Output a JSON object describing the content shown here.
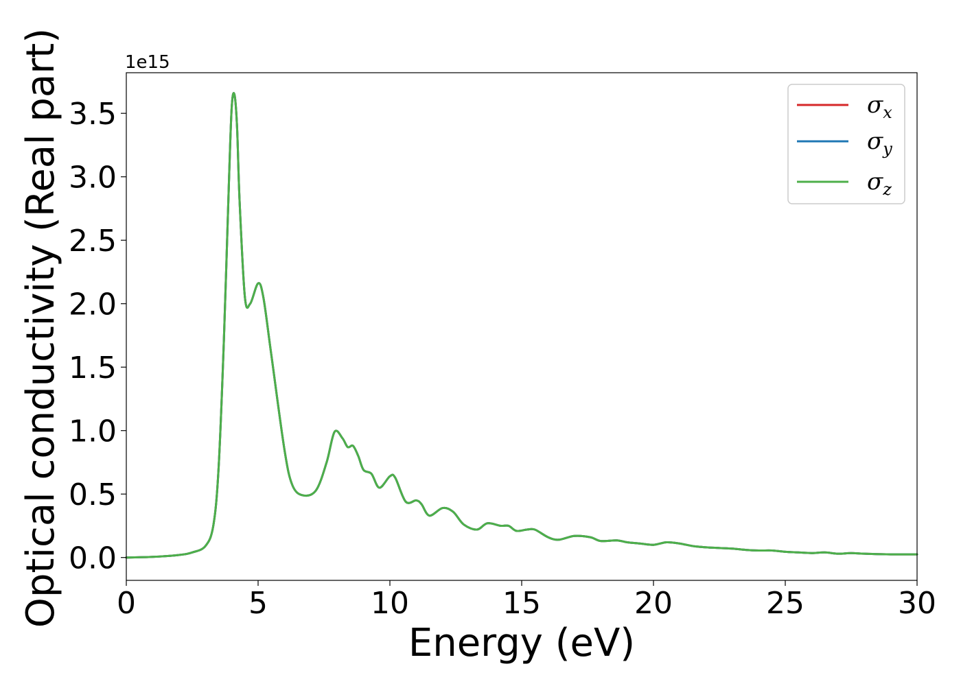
{
  "chart_data": {
    "type": "line",
    "xlabel": "Energy (eV)",
    "ylabel": "Optical conductivity (Real part)",
    "y_offset_label": "1e15",
    "xlim": [
      0,
      30
    ],
    "ylim": [
      -0.18,
      3.82
    ],
    "x_ticks": [
      0,
      5,
      10,
      15,
      20,
      25,
      30
    ],
    "x_tick_labels": [
      "0",
      "5",
      "10",
      "15",
      "20",
      "25",
      "30"
    ],
    "y_ticks": [
      0.0,
      0.5,
      1.0,
      1.5,
      2.0,
      2.5,
      3.0,
      3.5
    ],
    "y_tick_labels": [
      "0.0",
      "0.5",
      "1.0",
      "1.5",
      "2.0",
      "2.5",
      "3.0",
      "3.5"
    ],
    "grid": false,
    "legend_position": "top-right",
    "series_colors": [
      "#d62728",
      "#1f77b4",
      "#4daf4a"
    ],
    "series": [
      {
        "name": "σx",
        "symbol": "σ",
        "subscript": "x",
        "color": "#d62728",
        "x": [
          0,
          1,
          2,
          2.5,
          3,
          3.3,
          3.5,
          3.7,
          3.9,
          4.0,
          4.1,
          4.2,
          4.3,
          4.5,
          4.7,
          5.0,
          5.2,
          5.5,
          6.0,
          6.3,
          6.7,
          7.2,
          7.6,
          7.9,
          8.2,
          8.4,
          8.6,
          8.8,
          9.0,
          9.3,
          9.6,
          10.0,
          10.2,
          10.6,
          11.0,
          11.2,
          11.5,
          12.0,
          12.4,
          12.8,
          13.3,
          13.7,
          14.2,
          14.5,
          14.8,
          15.2,
          15.5,
          16.0,
          16.4,
          17.0,
          17.6,
          18.0,
          18.6,
          19.0,
          19.5,
          20.0,
          20.5,
          21.0,
          21.5,
          22.0,
          22.5,
          23.0,
          23.5,
          24.0,
          24.5,
          25.0,
          25.5,
          26.0,
          26.5,
          27.0,
          27.5,
          28.0,
          29.0,
          30.0
        ],
        "y": [
          0.0,
          0.005,
          0.02,
          0.04,
          0.09,
          0.25,
          0.7,
          1.7,
          3.0,
          3.55,
          3.65,
          3.4,
          2.8,
          2.05,
          2.0,
          2.16,
          2.05,
          1.6,
          0.85,
          0.57,
          0.49,
          0.53,
          0.75,
          0.99,
          0.94,
          0.87,
          0.88,
          0.8,
          0.69,
          0.66,
          0.55,
          0.64,
          0.63,
          0.44,
          0.45,
          0.42,
          0.33,
          0.39,
          0.36,
          0.26,
          0.22,
          0.27,
          0.25,
          0.25,
          0.21,
          0.22,
          0.22,
          0.16,
          0.14,
          0.17,
          0.16,
          0.13,
          0.135,
          0.12,
          0.11,
          0.1,
          0.12,
          0.11,
          0.09,
          0.08,
          0.075,
          0.07,
          0.06,
          0.055,
          0.055,
          0.045,
          0.04,
          0.035,
          0.04,
          0.03,
          0.035,
          0.03,
          0.025,
          0.025
        ]
      },
      {
        "name": "σy",
        "symbol": "σ",
        "subscript": "y",
        "color": "#1f77b4",
        "x": [
          0,
          1,
          2,
          2.5,
          3,
          3.3,
          3.5,
          3.7,
          3.9,
          4.0,
          4.1,
          4.2,
          4.3,
          4.5,
          4.7,
          5.0,
          5.2,
          5.5,
          6.0,
          6.3,
          6.7,
          7.2,
          7.6,
          7.9,
          8.2,
          8.4,
          8.6,
          8.8,
          9.0,
          9.3,
          9.6,
          10.0,
          10.2,
          10.6,
          11.0,
          11.2,
          11.5,
          12.0,
          12.4,
          12.8,
          13.3,
          13.7,
          14.2,
          14.5,
          14.8,
          15.2,
          15.5,
          16.0,
          16.4,
          17.0,
          17.6,
          18.0,
          18.6,
          19.0,
          19.5,
          20.0,
          20.5,
          21.0,
          21.5,
          22.0,
          22.5,
          23.0,
          23.5,
          24.0,
          24.5,
          25.0,
          25.5,
          26.0,
          26.5,
          27.0,
          27.5,
          28.0,
          29.0,
          30.0
        ],
        "y": [
          0.0,
          0.005,
          0.02,
          0.04,
          0.09,
          0.25,
          0.7,
          1.7,
          3.0,
          3.55,
          3.65,
          3.4,
          2.8,
          2.05,
          2.0,
          2.16,
          2.05,
          1.6,
          0.85,
          0.57,
          0.49,
          0.53,
          0.75,
          0.99,
          0.94,
          0.87,
          0.88,
          0.8,
          0.69,
          0.66,
          0.55,
          0.64,
          0.63,
          0.44,
          0.45,
          0.42,
          0.33,
          0.39,
          0.36,
          0.26,
          0.22,
          0.27,
          0.25,
          0.25,
          0.21,
          0.22,
          0.22,
          0.16,
          0.14,
          0.17,
          0.16,
          0.13,
          0.135,
          0.12,
          0.11,
          0.1,
          0.12,
          0.11,
          0.09,
          0.08,
          0.075,
          0.07,
          0.06,
          0.055,
          0.055,
          0.045,
          0.04,
          0.035,
          0.04,
          0.03,
          0.035,
          0.03,
          0.025,
          0.025
        ]
      },
      {
        "name": "σz",
        "symbol": "σ",
        "subscript": "z",
        "color": "#4daf4a",
        "x": [
          0,
          1,
          2,
          2.5,
          3,
          3.3,
          3.5,
          3.7,
          3.9,
          4.0,
          4.1,
          4.2,
          4.3,
          4.5,
          4.7,
          5.0,
          5.2,
          5.5,
          6.0,
          6.3,
          6.7,
          7.2,
          7.6,
          7.9,
          8.2,
          8.4,
          8.6,
          8.8,
          9.0,
          9.3,
          9.6,
          10.0,
          10.2,
          10.6,
          11.0,
          11.2,
          11.5,
          12.0,
          12.4,
          12.8,
          13.3,
          13.7,
          14.2,
          14.5,
          14.8,
          15.2,
          15.5,
          16.0,
          16.4,
          17.0,
          17.6,
          18.0,
          18.6,
          19.0,
          19.5,
          20.0,
          20.5,
          21.0,
          21.5,
          22.0,
          22.5,
          23.0,
          23.5,
          24.0,
          24.5,
          25.0,
          25.5,
          26.0,
          26.5,
          27.0,
          27.5,
          28.0,
          29.0,
          30.0
        ],
        "y": [
          0.0,
          0.005,
          0.02,
          0.04,
          0.09,
          0.25,
          0.7,
          1.7,
          3.0,
          3.55,
          3.65,
          3.4,
          2.8,
          2.05,
          2.0,
          2.16,
          2.05,
          1.6,
          0.85,
          0.57,
          0.49,
          0.53,
          0.75,
          0.99,
          0.94,
          0.87,
          0.88,
          0.8,
          0.69,
          0.66,
          0.55,
          0.64,
          0.63,
          0.44,
          0.45,
          0.42,
          0.33,
          0.39,
          0.36,
          0.26,
          0.22,
          0.27,
          0.25,
          0.25,
          0.21,
          0.22,
          0.22,
          0.16,
          0.14,
          0.17,
          0.16,
          0.13,
          0.135,
          0.12,
          0.11,
          0.1,
          0.12,
          0.11,
          0.09,
          0.08,
          0.075,
          0.07,
          0.06,
          0.055,
          0.055,
          0.045,
          0.04,
          0.035,
          0.04,
          0.03,
          0.035,
          0.03,
          0.025,
          0.025
        ]
      }
    ]
  }
}
